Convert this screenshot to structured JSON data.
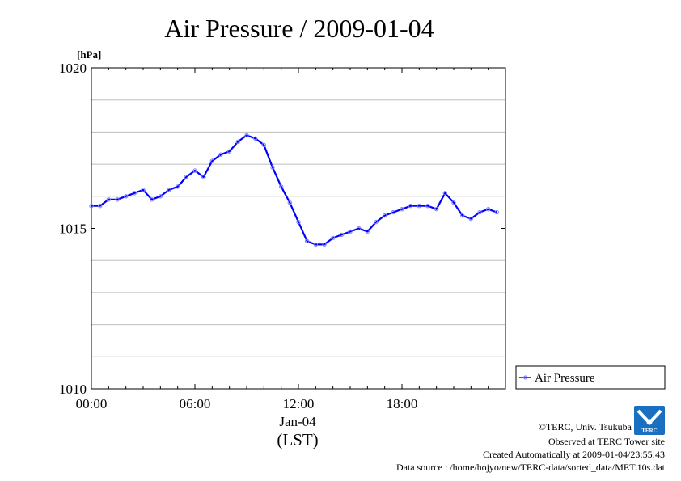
{
  "chart_data": {
    "type": "line",
    "title": "Air Pressure / 2009-01-04",
    "ylabel": "[hPa]",
    "ylim": [
      1010,
      1020
    ],
    "yticks": [
      {
        "value": 1010,
        "label": "1010"
      },
      {
        "value": 1015,
        "label": "1015"
      },
      {
        "value": 1020,
        "label": "1020"
      }
    ],
    "ygrid": [
      1011,
      1012,
      1013,
      1014,
      1016,
      1017,
      1018,
      1019
    ],
    "xlim": [
      0,
      24
    ],
    "xticks": [
      {
        "value": 0,
        "label": "00:00"
      },
      {
        "value": 6,
        "label": "06:00"
      },
      {
        "value": 12,
        "label": "12:00"
      },
      {
        "value": 18,
        "label": "18:00"
      }
    ],
    "xdate": "Jan-04",
    "xunit": "(LST)",
    "grid": true,
    "legend": "right",
    "series": [
      {
        "name": "Air Pressure",
        "color": "#0000ff",
        "x": [
          0.0,
          0.5,
          1.0,
          1.5,
          2.0,
          2.5,
          3.0,
          3.5,
          4.0,
          4.5,
          5.0,
          5.5,
          6.0,
          6.5,
          7.0,
          7.5,
          8.0,
          8.5,
          9.0,
          9.5,
          10.0,
          10.5,
          11.0,
          11.5,
          12.0,
          12.5,
          13.0,
          13.5,
          14.0,
          14.5,
          15.0,
          15.5,
          16.0,
          16.5,
          17.0,
          17.5,
          18.0,
          18.5,
          19.0,
          19.5,
          20.0,
          20.5,
          21.0,
          21.5,
          22.0,
          22.5,
          23.0,
          23.5
        ],
        "values": [
          1015.7,
          1015.7,
          1015.9,
          1015.9,
          1016.0,
          1016.1,
          1016.2,
          1015.9,
          1016.0,
          1016.2,
          1016.3,
          1016.6,
          1016.8,
          1016.6,
          1017.1,
          1017.3,
          1017.4,
          1017.7,
          1017.9,
          1017.8,
          1017.6,
          1016.9,
          1016.3,
          1015.8,
          1015.2,
          1014.6,
          1014.5,
          1014.5,
          1014.7,
          1014.8,
          1014.9,
          1015.0,
          1014.9,
          1015.2,
          1015.4,
          1015.5,
          1015.6,
          1015.7,
          1015.7,
          1015.7,
          1015.6,
          1016.1,
          1015.8,
          1015.4,
          1015.3,
          1015.5,
          1015.6,
          1015.5
        ]
      }
    ]
  },
  "footer": {
    "credit": "©TERC, Univ. Tsukuba",
    "site": "Observed at TERC Tower site",
    "created": "Created Automatically at 2009-01-04/23:55:43",
    "source": "Data source : /home/hojyo/new/TERC-data/sorted_data/MET.10s.dat",
    "logo_text": "TERC"
  }
}
